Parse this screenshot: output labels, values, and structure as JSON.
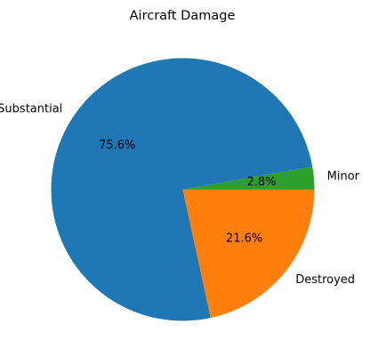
{
  "chart_data": {
    "type": "pie",
    "title": "Aircraft Damage",
    "start_angle_deg": 0,
    "direction": "counterclockwise",
    "slices": [
      {
        "label": "Minor",
        "value": 2.8,
        "pct_label": "2.8%",
        "color": "#2ca02c"
      },
      {
        "label": "Substantial",
        "value": 75.6,
        "pct_label": "75.6%",
        "color": "#1f77b4"
      },
      {
        "label": "Destroyed",
        "value": 21.6,
        "pct_label": "21.6%",
        "color": "#ff7f0e"
      }
    ]
  }
}
